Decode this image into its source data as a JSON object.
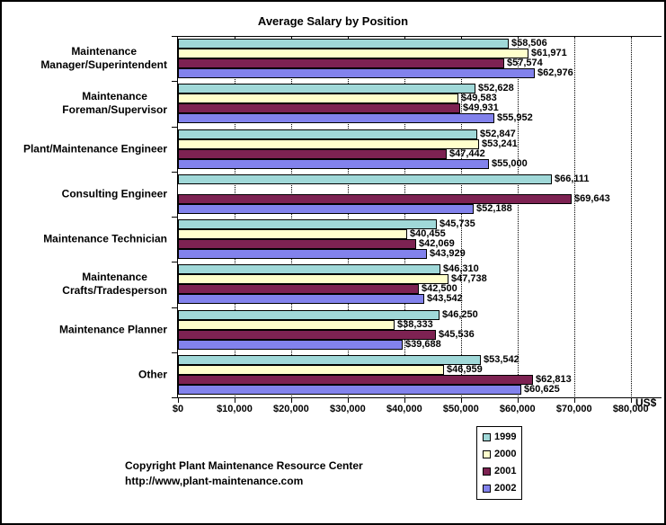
{
  "chart_data": {
    "type": "bar",
    "orientation": "horizontal",
    "title": "Average Salary by Position",
    "unit_label": "US$",
    "categories": [
      [
        "Maintenance",
        "Manager/Superintendent"
      ],
      [
        "Maintenance",
        "Foreman/Supervisor"
      ],
      [
        "Plant/Maintenance Engineer"
      ],
      [
        "Consulting Engineer"
      ],
      [
        "Maintenance Technician"
      ],
      [
        "Maintenance",
        "Crafts/Tradesperson"
      ],
      [
        "Maintenance Planner"
      ],
      [
        "Other"
      ]
    ],
    "series": [
      {
        "name": "1999",
        "color": "#A0D8D8",
        "values": [
          58506,
          52628,
          52847,
          66111,
          45735,
          46310,
          46250,
          53542
        ]
      },
      {
        "name": "2000",
        "color": "#FFFFCC",
        "values": [
          61971,
          49583,
          53241,
          null,
          40455,
          47738,
          38333,
          46959
        ]
      },
      {
        "name": "2001",
        "color": "#7D2252",
        "values": [
          57574,
          49931,
          47442,
          69643,
          42069,
          42500,
          45536,
          62813
        ]
      },
      {
        "name": "2002",
        "color": "#8282EC",
        "values": [
          62976,
          55952,
          55000,
          52188,
          43929,
          43542,
          39688,
          60625
        ]
      }
    ],
    "x_axis": {
      "min": 0,
      "max": 80000,
      "tick_interval": 10000,
      "tick_labels": [
        "$0",
        "$10,000",
        "$20,000",
        "$30,000",
        "$40,000",
        "$50,000",
        "$60,000",
        "$70,000",
        "$80,000"
      ]
    },
    "legend": {
      "entries": [
        "1999",
        "2000",
        "2001",
        "2002"
      ],
      "position": "bottom-right"
    },
    "grid": "vertical-dotted",
    "footer": {
      "line1": "Copyright Plant Maintenance Resource Center",
      "line2": "http://www,plant-maintenance.com"
    }
  }
}
